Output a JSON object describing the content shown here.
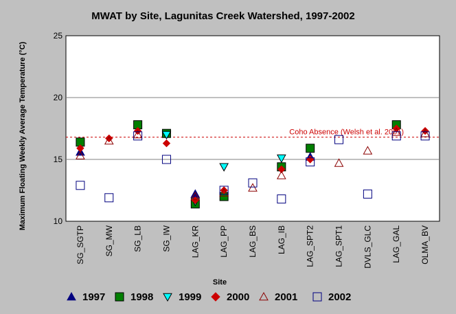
{
  "chart_data": {
    "type": "scatter",
    "title": "MWAT by Site, Lagunitas Creek Watershed, 1997-2002",
    "xlabel": "Site",
    "ylabel": "Maximum Floating Weekly Average Temperature (°C)",
    "ylim": [
      10,
      25
    ],
    "yticks": [
      10,
      15,
      20,
      25
    ],
    "grid": true,
    "legend_position": "bottom",
    "categories": [
      "SG_SGTP",
      "SG_MW",
      "SG_LB",
      "SG_IW",
      "LAG_KR",
      "LAG_PP",
      "LAG_BS",
      "LAG_IB",
      "LAG_SPT2",
      "LAG_SPT1",
      "DVLS_GLC",
      "LAG_GAL",
      "OLMA_BV"
    ],
    "reference_line": {
      "value": 16.8,
      "label": "Coho Absence (Welsh et al. 2001)",
      "color": "#cc0000"
    },
    "series": [
      {
        "name": "1997",
        "marker": "triangle-up",
        "color": "#00007f",
        "fill": "#00007f",
        "values": [
          15.6,
          null,
          null,
          null,
          12.2,
          null,
          null,
          null,
          15.2,
          null,
          null,
          null,
          null
        ]
      },
      {
        "name": "1998",
        "marker": "square",
        "color": "#000000",
        "fill": "#007f00",
        "values": [
          16.4,
          null,
          17.8,
          17.1,
          11.4,
          12.0,
          null,
          14.4,
          15.9,
          null,
          null,
          17.8,
          null
        ]
      },
      {
        "name": "1999",
        "marker": "triangle-down",
        "color": "#000000",
        "fill": "#00ffff",
        "values": [
          null,
          null,
          null,
          17.0,
          11.6,
          14.4,
          null,
          15.1,
          null,
          null,
          null,
          null,
          null
        ]
      },
      {
        "name": "2000",
        "marker": "diamond",
        "color": "#cc0000",
        "fill": "#cc0000",
        "values": [
          15.9,
          16.7,
          17.3,
          16.3,
          11.7,
          12.5,
          null,
          14.2,
          15.0,
          null,
          null,
          17.5,
          17.3
        ]
      },
      {
        "name": "2001",
        "marker": "triangle-up-open",
        "color": "#8b0000",
        "fill": "none",
        "values": [
          15.3,
          16.5,
          17.0,
          null,
          12.0,
          12.3,
          12.7,
          13.7,
          null,
          14.7,
          15.7,
          17.2,
          17.1
        ]
      },
      {
        "name": "2002",
        "marker": "square-open",
        "color": "#00007f",
        "fill": "none",
        "values": [
          12.9,
          11.9,
          16.9,
          15.0,
          null,
          12.5,
          13.1,
          11.8,
          14.8,
          16.6,
          12.2,
          16.9,
          16.9
        ]
      }
    ]
  }
}
